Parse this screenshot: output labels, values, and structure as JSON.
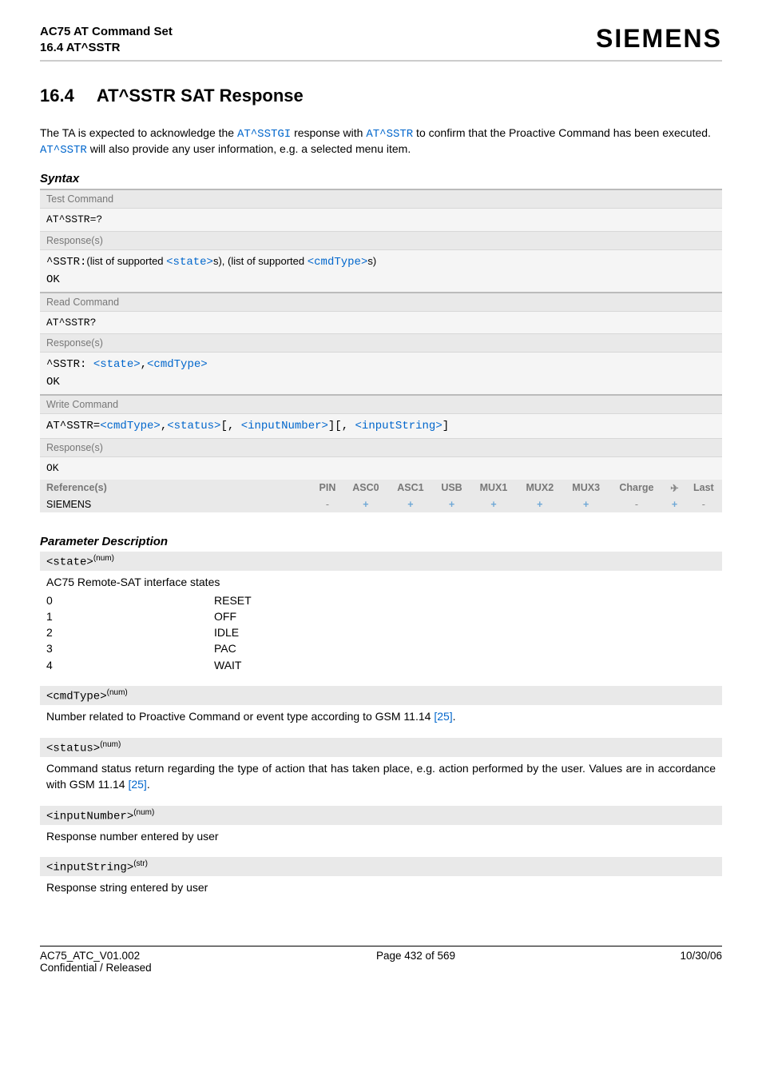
{
  "header": {
    "doc_title": "AC75 AT Command Set",
    "sub_title": "16.4 AT^SSTR",
    "brand": "SIEMENS"
  },
  "section": {
    "number": "16.4",
    "title": "AT^SSTR   SAT Response"
  },
  "intro": {
    "t1": "The TA is expected to acknowledge the ",
    "l1": "AT^SSTGI",
    "t2": " response with ",
    "l2": "AT^SSTR",
    "t3": " to confirm that the Proactive Command has been executed. ",
    "l3": "AT^SSTR",
    "t4": " will also provide any user information, e.g. a selected menu item."
  },
  "syntax_label": "Syntax",
  "syntax": {
    "test": {
      "label": "Test Command",
      "cmd": "AT^SSTR=?",
      "resp_label": "Response(s)",
      "resp_prefix": "^SSTR:",
      "resp_t1": "(list of supported ",
      "resp_p1": "<state>",
      "resp_t2": "s), (list of supported ",
      "resp_p2": "<cmdType>",
      "resp_t3": "s)",
      "ok": "OK"
    },
    "read": {
      "label": "Read Command",
      "cmd": "AT^SSTR?",
      "resp_label": "Response(s)",
      "resp_prefix": "^SSTR: ",
      "resp_p1": "<state>",
      "resp_sep": ",",
      "resp_p2": "<cmdType>",
      "ok": "OK"
    },
    "write": {
      "label": "Write Command",
      "cmd_prefix": "AT^SSTR=",
      "p1": "<cmdType>",
      "c1": ",",
      "p2": "<status>",
      "c2": "[, ",
      "p3": "<inputNumber>",
      "c3": "][, ",
      "p4": "<inputString>",
      "c4": "]",
      "resp_label": "Response(s)",
      "ok": "OK"
    }
  },
  "ref": {
    "label": "Reference(s)",
    "cols": [
      "PIN",
      "ASC0",
      "ASC1",
      "USB",
      "MUX1",
      "MUX2",
      "MUX3",
      "Charge",
      "✈",
      "Last"
    ],
    "vendor": "SIEMENS",
    "vals": [
      "-",
      "+",
      "+",
      "+",
      "+",
      "+",
      "+",
      "-",
      "+",
      "-"
    ]
  },
  "param_label": "Parameter Description",
  "params": {
    "state": {
      "name": "<state>",
      "type": "(num)",
      "desc": "AC75 Remote-SAT interface states",
      "rows": [
        {
          "k": "0",
          "v": "RESET"
        },
        {
          "k": "1",
          "v": "OFF"
        },
        {
          "k": "2",
          "v": "IDLE"
        },
        {
          "k": "3",
          "v": "PAC"
        },
        {
          "k": "4",
          "v": "WAIT"
        }
      ]
    },
    "cmdType": {
      "name": "<cmdType>",
      "type": "(num)",
      "desc_t1": "Number related to Proactive Command or event type according to GSM 11.14 ",
      "link": "[25]",
      "desc_t2": "."
    },
    "status": {
      "name": "<status>",
      "type": "(num)",
      "desc_t1": "Command status return regarding the type of action that has taken place, e.g. action performed by the user. Values are in accordance with GSM 11.14 ",
      "link": "[25]",
      "desc_t2": "."
    },
    "inputNumber": {
      "name": "<inputNumber>",
      "type": "(num)",
      "desc": "Response number entered by user"
    },
    "inputString": {
      "name": "<inputString>",
      "type": "(str)",
      "desc": "Response string entered by user"
    }
  },
  "footer": {
    "left1": "AC75_ATC_V01.002",
    "left2": "Confidential / Released",
    "center": "Page 432 of 569",
    "right": "10/30/06"
  }
}
